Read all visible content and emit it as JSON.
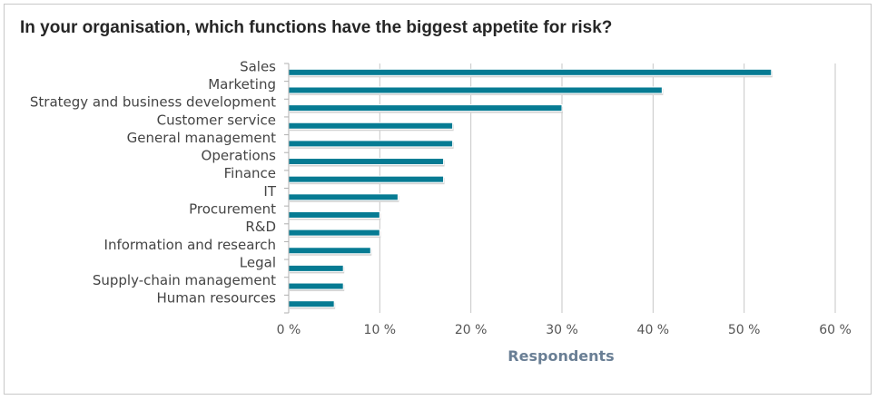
{
  "chart_data": {
    "type": "bar",
    "orientation": "horizontal",
    "title": "In your organisation, which functions have the biggest appetite for risk?",
    "xlabel": "Respondents",
    "ylabel": "",
    "categories": [
      "Sales",
      "Marketing",
      "Strategy and business development",
      "Customer service",
      "General management",
      "Operations",
      "Finance",
      "IT",
      "Procurement",
      "R&D",
      "Information and research",
      "Legal",
      "Supply-chain management",
      "Human resources"
    ],
    "values": [
      53,
      41,
      30,
      18,
      18,
      17,
      17,
      12,
      10,
      10,
      9,
      6,
      6,
      5
    ],
    "xlim": [
      0,
      60
    ],
    "xticks": [
      0,
      10,
      20,
      30,
      40,
      50,
      60
    ],
    "xtick_labels": [
      "0 %",
      "10 %",
      "20 %",
      "30 %",
      "40 %",
      "50 %",
      "60 %"
    ],
    "bar_color": "#067b93",
    "grid": true,
    "legend": "none"
  }
}
